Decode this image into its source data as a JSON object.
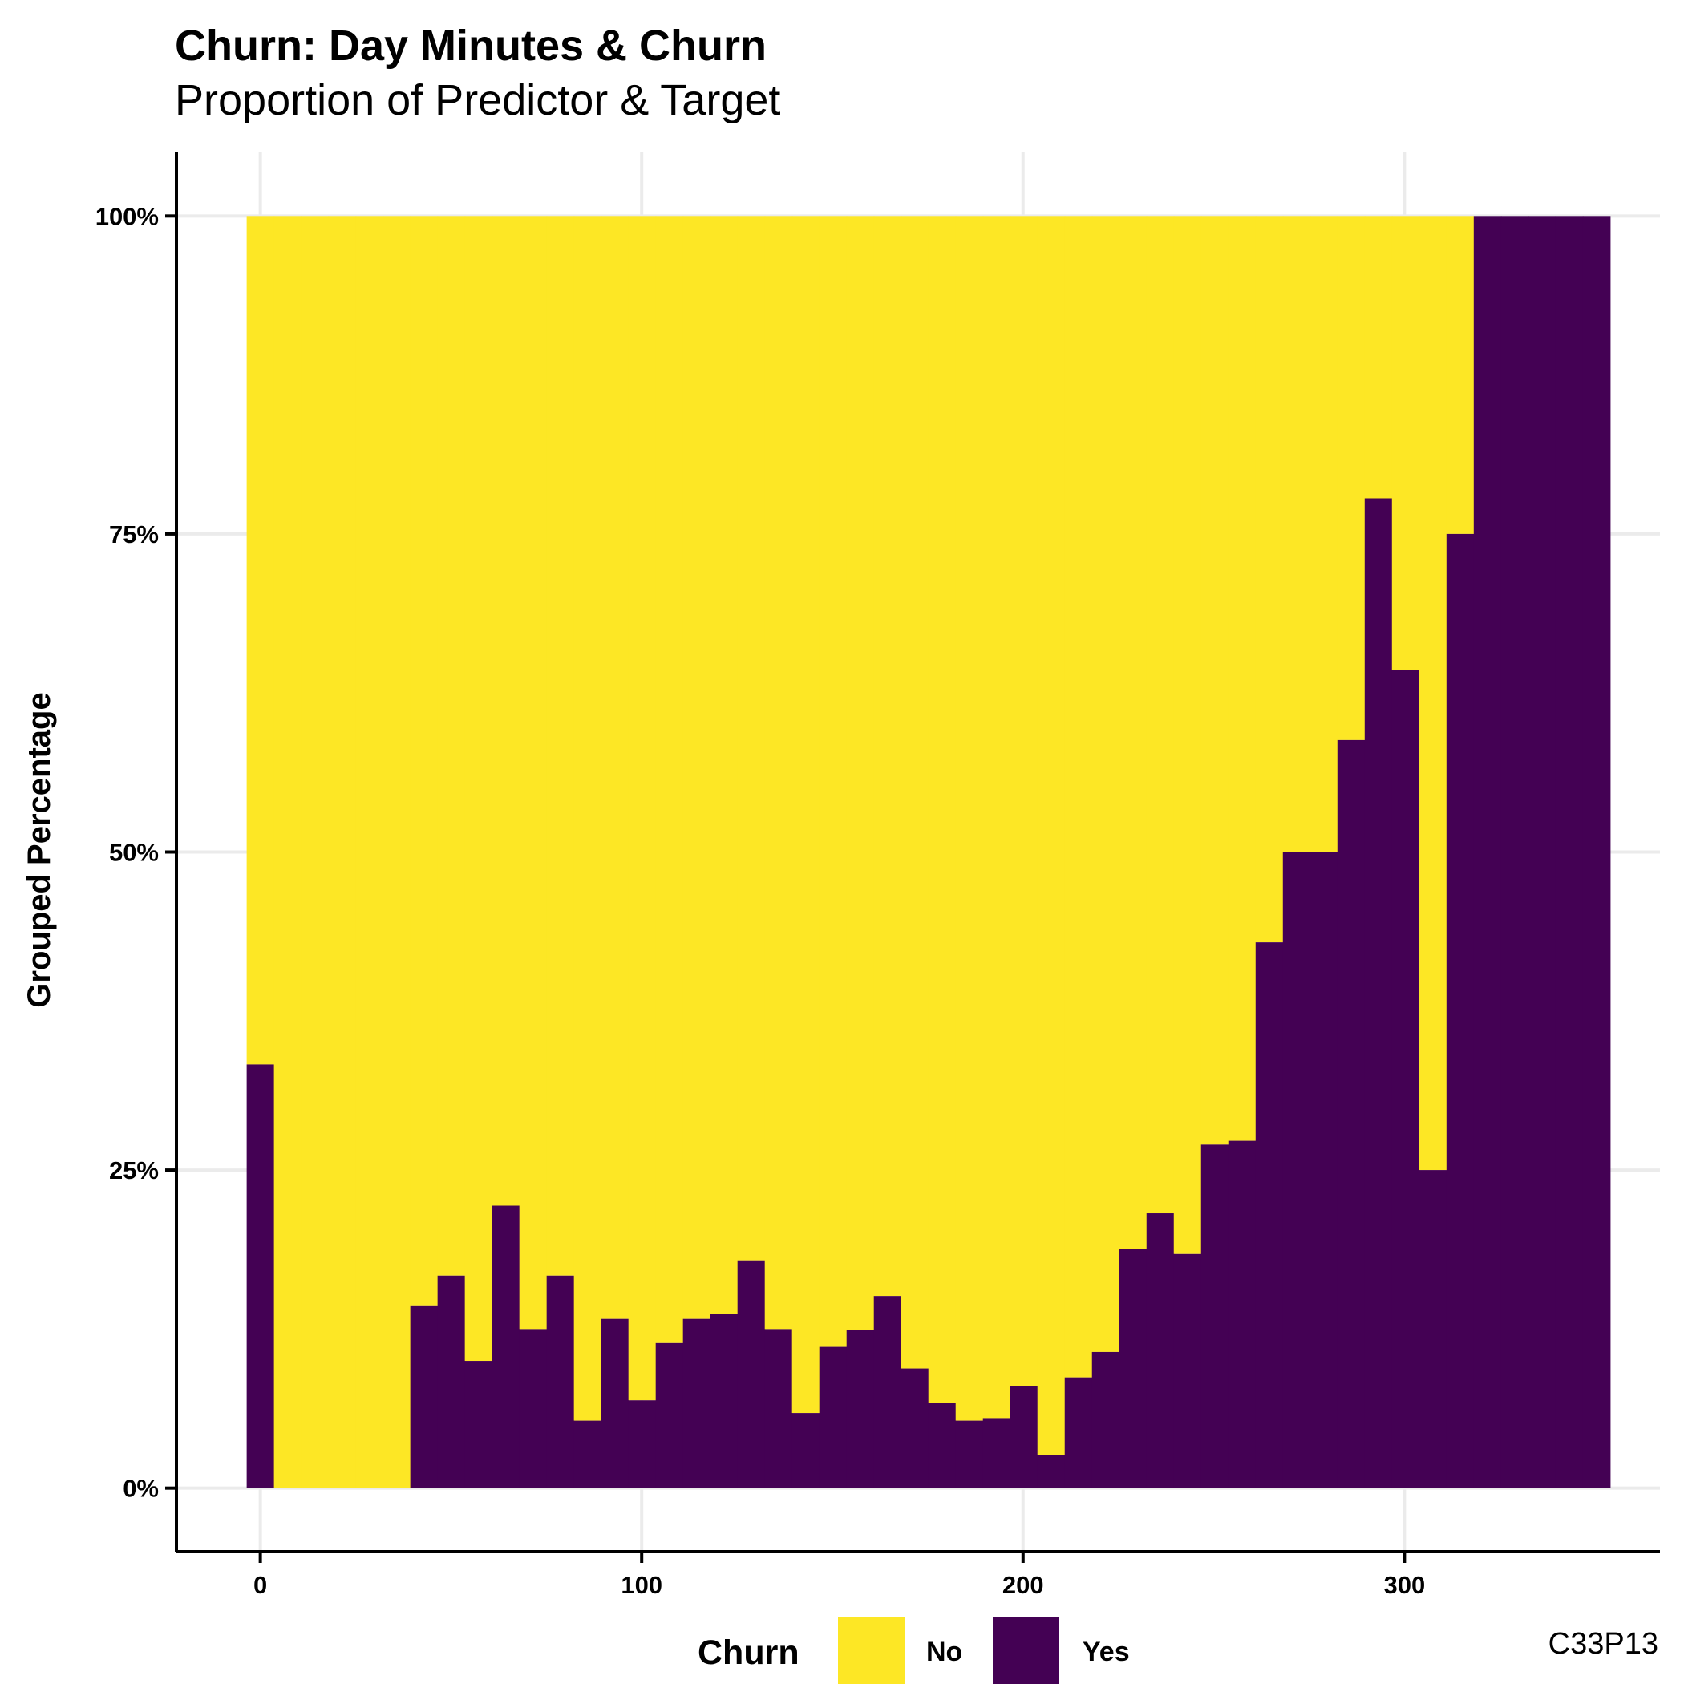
{
  "chart_data": {
    "type": "bar",
    "title": "Churn: Day Minutes & Churn",
    "subtitle": "Proportion of Predictor & Target",
    "xlabel": "",
    "ylabel": "Grouped Percentage",
    "caption": "C33P13",
    "xlim": [
      -22,
      367
    ],
    "ylim": [
      -0.05,
      1.05
    ],
    "x_ticks": [
      0,
      100,
      200,
      300
    ],
    "x_tick_labels": [
      "0",
      "100",
      "200",
      "300"
    ],
    "y_ticks": [
      0,
      0.25,
      0.5,
      0.75,
      1.0
    ],
    "y_tick_labels": [
      "0%",
      "25%",
      "50%",
      "75%",
      "100%"
    ],
    "grid": true,
    "position": "fill",
    "bin_width": 7.15,
    "bin_centers": [
      0,
      7.15,
      14.3,
      21.45,
      28.6,
      35.75,
      42.9,
      50.05,
      57.2,
      64.35,
      71.5,
      78.65,
      85.8,
      92.95,
      100.1,
      107.25,
      114.4,
      121.55,
      128.7,
      135.85,
      143,
      150.15,
      157.3,
      164.45,
      171.6,
      178.75,
      185.9,
      193.05,
      200.2,
      207.35,
      214.5,
      221.65,
      228.8,
      235.95,
      243.1,
      250.25,
      257.4,
      264.55,
      271.7,
      278.85,
      286,
      293.15,
      300.3,
      307.45,
      314.6,
      321.75,
      328.9,
      336.05,
      343.2,
      350.35
    ],
    "series": [
      {
        "name": "Yes",
        "values": [
          0.333,
          0,
          0,
          0,
          0,
          0,
          0.143,
          0.167,
          0.1,
          0.222,
          0.125,
          0.167,
          0.053,
          0.133,
          0.069,
          0.114,
          0.133,
          0.137,
          0.179,
          0.125,
          0.059,
          0.111,
          0.124,
          0.151,
          0.094,
          0.067,
          0.053,
          0.055,
          0.08,
          0.026,
          0.087,
          0.107,
          0.188,
          0.216,
          0.184,
          0.27,
          0.273,
          0.429,
          0.5,
          0.5,
          0.588,
          0.778,
          0.643,
          0.25,
          0.75,
          1,
          1,
          1,
          1,
          1
        ]
      },
      {
        "name": "No",
        "values": [
          0.667,
          1,
          1,
          1,
          1,
          1,
          0.857,
          0.833,
          0.9,
          0.778,
          0.875,
          0.833,
          0.947,
          0.867,
          0.931,
          0.886,
          0.867,
          0.863,
          0.821,
          0.875,
          0.941,
          0.889,
          0.876,
          0.849,
          0.906,
          0.933,
          0.947,
          0.945,
          0.92,
          0.974,
          0.913,
          0.893,
          0.812,
          0.784,
          0.816,
          0.73,
          0.727,
          0.571,
          0.5,
          0.5,
          0.412,
          0.222,
          0.357,
          0.75,
          0.25,
          0,
          0,
          0,
          0,
          0
        ]
      }
    ],
    "colors": {
      "Yes": "#440154",
      "No": "#FDE725",
      "grid": "#EBEBEB",
      "axis": "#000000"
    },
    "legend": {
      "title": "Churn",
      "position": "bottom",
      "items": [
        "No",
        "Yes"
      ]
    }
  }
}
